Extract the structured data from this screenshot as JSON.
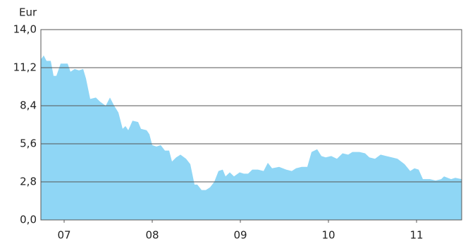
{
  "chart_data": {
    "type": "area",
    "y_label": "Eur",
    "color": "#8fd6f5",
    "grid": true,
    "xlim": [
      2006.736,
      2011.512
    ],
    "xticks": [
      {
        "value": 2007,
        "label": "07"
      },
      {
        "value": 2008,
        "label": "08"
      },
      {
        "value": 2009,
        "label": "09"
      },
      {
        "value": 2010,
        "label": "10"
      },
      {
        "value": 2011,
        "label": "11"
      }
    ],
    "ylim": [
      0,
      14
    ],
    "yticks": [
      {
        "value": 0,
        "label": "0,0"
      },
      {
        "value": 2.8,
        "label": "2,8"
      },
      {
        "value": 5.6,
        "label": "5,6"
      },
      {
        "value": 8.4,
        "label": "8,4"
      },
      {
        "value": 11.2,
        "label": "11,2"
      },
      {
        "value": 14,
        "label": "14,0"
      }
    ],
    "x": [
      2006.736,
      2006.768,
      2006.8,
      2006.848,
      2006.88,
      2006.912,
      2006.96,
      2007.04,
      2007.072,
      2007.12,
      2007.168,
      2007.216,
      2007.248,
      2007.296,
      2007.36,
      2007.408,
      2007.472,
      2007.52,
      2007.568,
      2007.616,
      2007.664,
      2007.696,
      2007.728,
      2007.776,
      2007.84,
      2007.872,
      2007.936,
      2007.968,
      2008.0,
      2008.048,
      2008.096,
      2008.144,
      2008.192,
      2008.224,
      2008.272,
      2008.32,
      2008.384,
      2008.432,
      2008.48,
      2008.512,
      2008.56,
      2008.608,
      2008.656,
      2008.704,
      2008.752,
      2008.8,
      2008.832,
      2008.88,
      2008.928,
      2008.992,
      2009.04,
      2009.088,
      2009.136,
      2009.2,
      2009.264,
      2009.312,
      2009.36,
      2009.44,
      2009.52,
      2009.584,
      2009.632,
      2009.696,
      2009.76,
      2009.808,
      2009.872,
      2009.92,
      2009.968,
      2010.032,
      2010.096,
      2010.16,
      2010.224,
      2010.272,
      2010.352,
      2010.416,
      2010.464,
      2010.528,
      2010.592,
      2010.656,
      2010.72,
      2010.784,
      2010.864,
      2010.928,
      2010.976,
      2011.024,
      2011.072,
      2011.152,
      2011.216,
      2011.28,
      2011.312,
      2011.392,
      2011.44,
      2011.512
    ],
    "values": [
      11.8,
      12.1,
      11.7,
      11.7,
      10.6,
      10.6,
      11.5,
      11.5,
      10.9,
      11.1,
      11.0,
      11.1,
      10.4,
      8.9,
      9.0,
      8.7,
      8.4,
      9.0,
      8.4,
      7.9,
      6.7,
      6.9,
      6.6,
      7.3,
      7.2,
      6.7,
      6.6,
      6.3,
      5.5,
      5.4,
      5.5,
      5.1,
      5.1,
      4.3,
      4.6,
      4.8,
      4.5,
      4.1,
      2.6,
      2.6,
      2.2,
      2.2,
      2.4,
      2.8,
      3.6,
      3.7,
      3.2,
      3.5,
      3.2,
      3.5,
      3.4,
      3.4,
      3.7,
      3.7,
      3.6,
      4.2,
      3.8,
      3.9,
      3.7,
      3.6,
      3.8,
      3.9,
      3.9,
      5.0,
      5.2,
      4.7,
      4.6,
      4.7,
      4.5,
      4.9,
      4.8,
      5.0,
      5.0,
      4.9,
      4.6,
      4.5,
      4.8,
      4.7,
      4.6,
      4.5,
      4.1,
      3.6,
      3.8,
      3.7,
      3.0,
      3.0,
      2.9,
      3.0,
      3.2,
      3.0,
      3.1,
      3.0
    ]
  }
}
